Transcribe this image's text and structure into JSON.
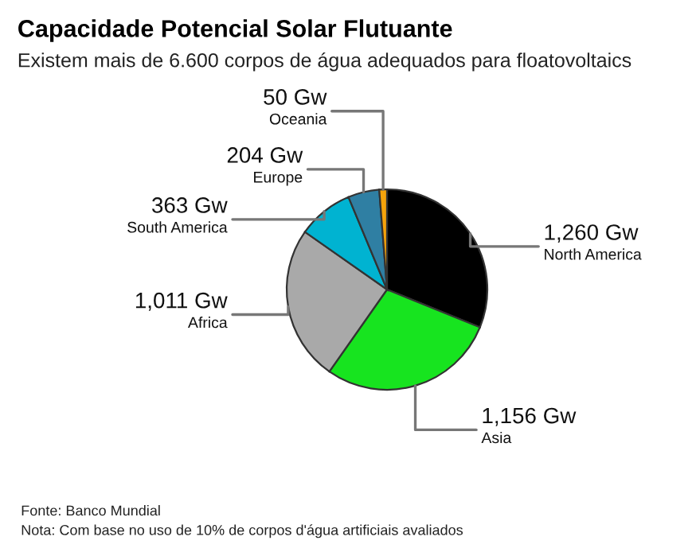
{
  "chart_data": {
    "type": "pie",
    "title": "Capacidade Potencial Solar Flutuante",
    "subtitle": "Existem mais de 6.600 corpos de água adequados para floatovoltaics",
    "categories": [
      "North America",
      "Asia",
      "Africa",
      "South America",
      "Europe",
      "Oceania"
    ],
    "values": [
      1260,
      1156,
      1011,
      363,
      204,
      50
    ],
    "value_labels": [
      "1,260 Gw",
      "1,156 Gw",
      "1,011 Gw",
      "363 Gw",
      "204 Gw",
      "50 Gw"
    ],
    "colors": [
      "#000000",
      "#17e41f",
      "#a9a9a9",
      "#00b3d1",
      "#2f7fa3",
      "#f5a30b"
    ],
    "annotations": [
      "Fonte: Banco Mundial",
      "Nota: Com base no uso de 10% de corpos d'água artificiais avaliados"
    ]
  }
}
